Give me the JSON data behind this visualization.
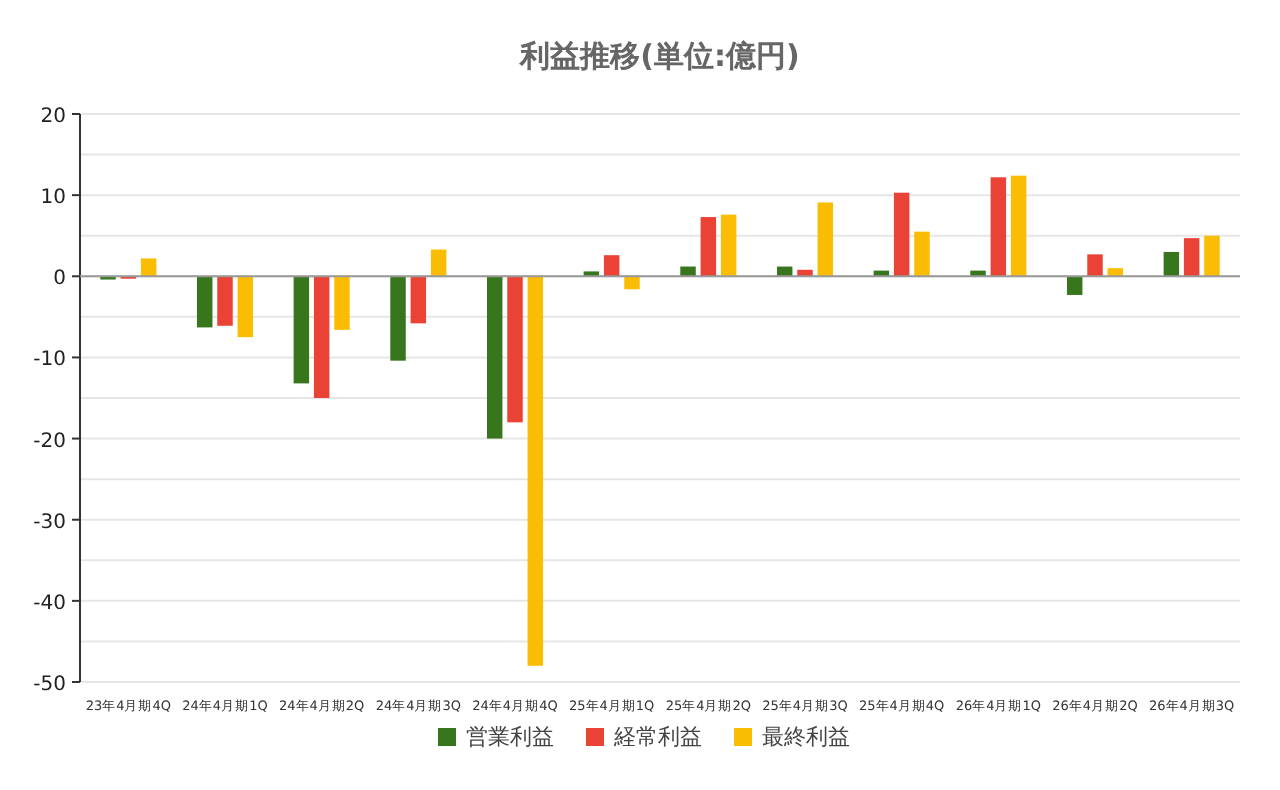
{
  "chart_data": {
    "type": "bar",
    "title": "利益推移(単位:億円)",
    "categories": [
      "23年4月期4Q",
      "24年4月期1Q",
      "24年4月期2Q",
      "24年4月期3Q",
      "24年4月期4Q",
      "25年4月期1Q",
      "25年4月期2Q",
      "25年4月期3Q",
      "25年4月期4Q",
      "26年4月期1Q",
      "26年4月期2Q",
      "26年4月期3Q"
    ],
    "series": [
      {
        "name": "営業利益",
        "color": "#38761d",
        "values": [
          -0.4,
          -6.3,
          -13.2,
          -10.4,
          -20,
          0.6,
          1.2,
          1.2,
          0.7,
          0.7,
          -2.3,
          3.0
        ]
      },
      {
        "name": "経常利益",
        "color": "#ea4335",
        "values": [
          -0.3,
          -6.1,
          -15,
          -5.8,
          -18,
          2.6,
          7.3,
          0.8,
          10.3,
          12.2,
          2.7,
          4.7
        ]
      },
      {
        "name": "最終利益",
        "color": "#fbbc04",
        "values": [
          2.2,
          -7.5,
          -6.6,
          3.3,
          -48,
          -1.6,
          7.6,
          9.1,
          5.5,
          12.4,
          1.0,
          5.0
        ]
      }
    ],
    "ylim": [
      -50,
      20
    ],
    "yticks": [
      -50,
      {
        "value": -45,
        "label": null
      },
      -40,
      {
        "value": -35,
        "label": null
      },
      -30,
      {
        "value": -25,
        "label": null
      },
      -20,
      {
        "value": -15,
        "label": null
      },
      -10,
      {
        "value": -5,
        "label": null
      },
      0,
      {
        "value": 5,
        "label": null
      },
      10,
      {
        "value": 15,
        "label": null
      },
      20
    ],
    "grid": "y",
    "legend": "bottom"
  }
}
